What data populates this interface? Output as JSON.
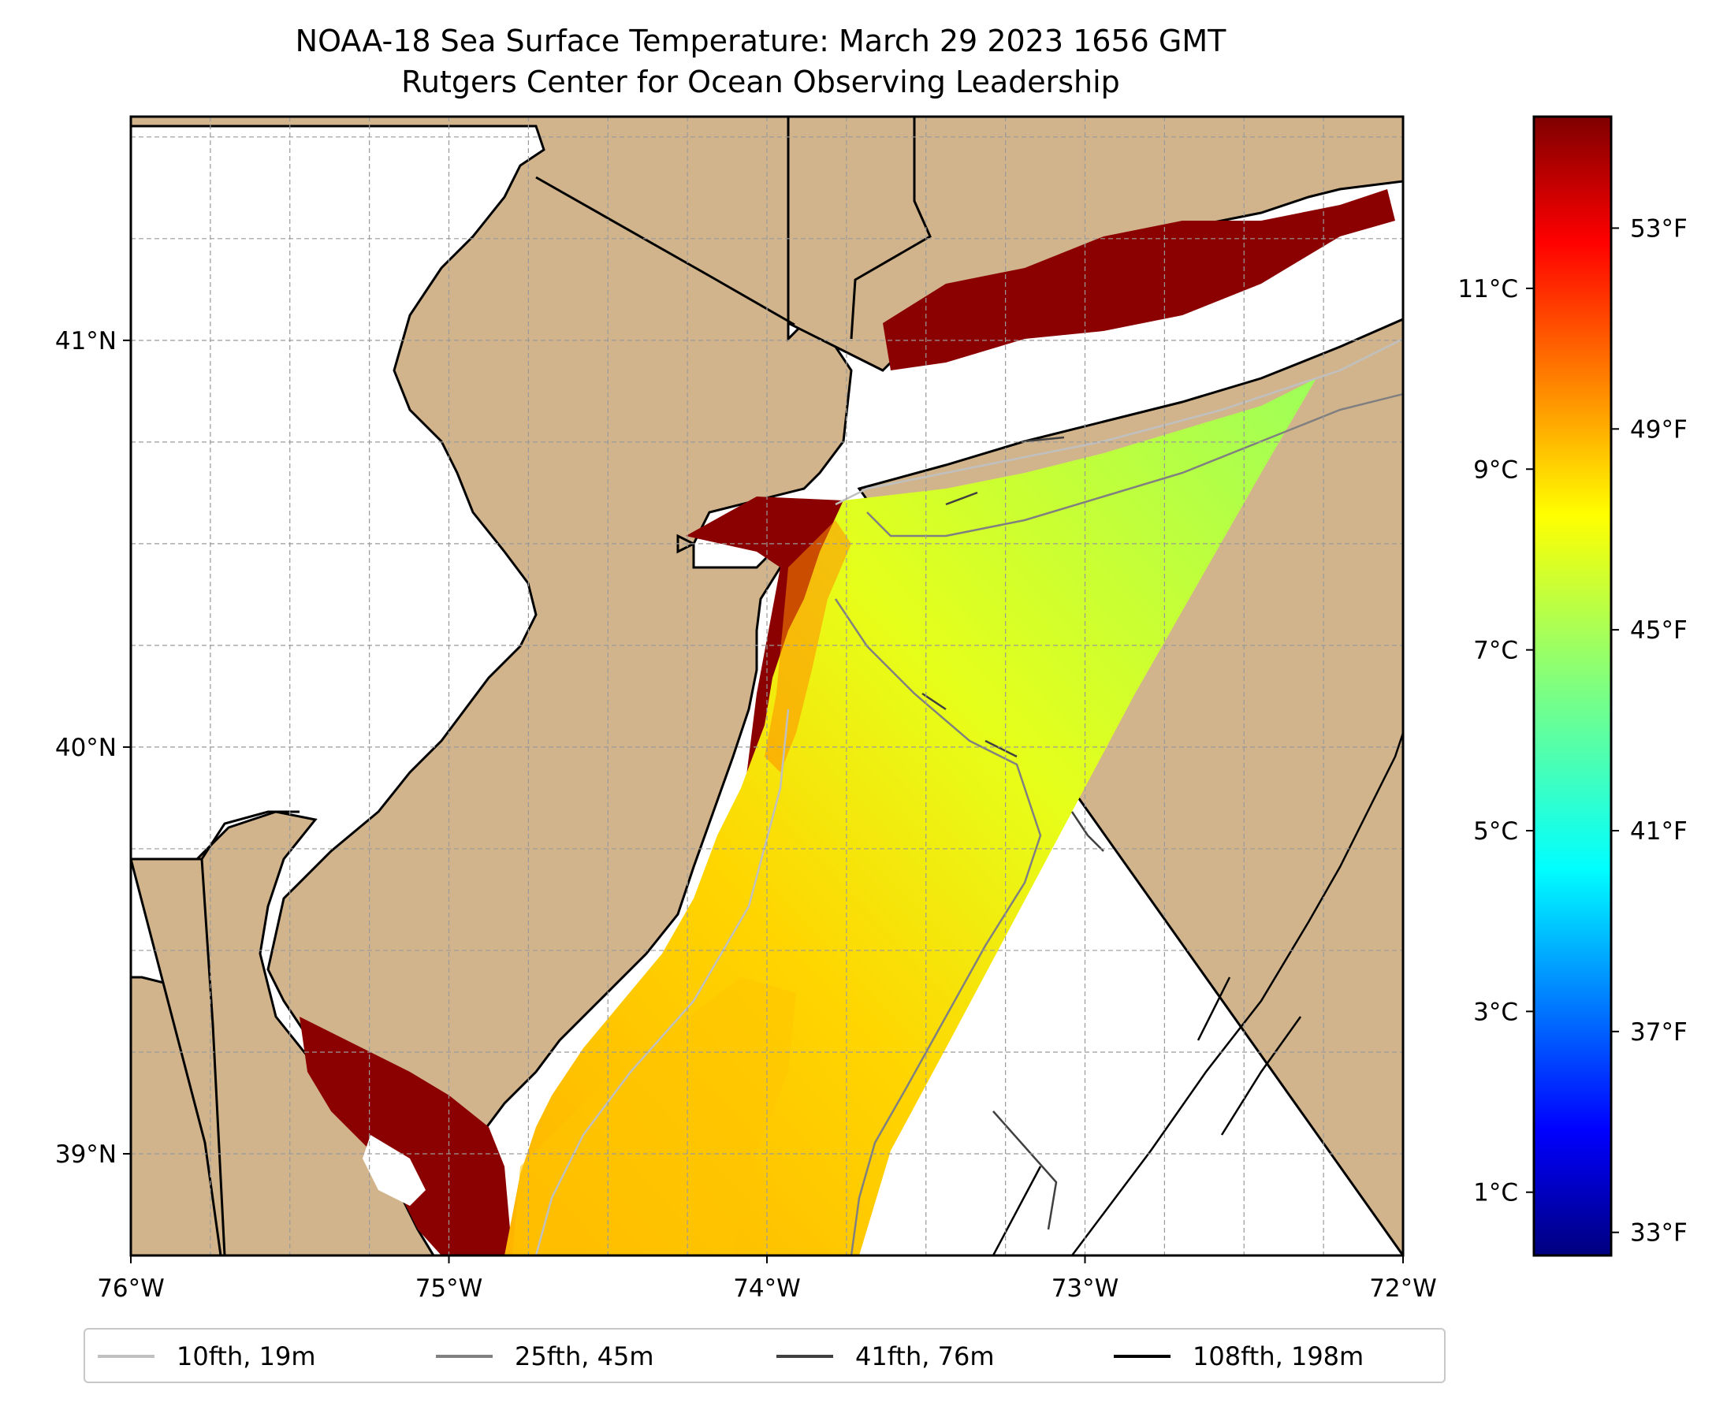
{
  "title": {
    "line1": "NOAA-18 Sea Surface Temperature: March 29 2023 1656 GMT",
    "line2": "Rutgers Center for Ocean Observing Leadership"
  },
  "map": {
    "lon_range": [
      -76.0,
      -72.0
    ],
    "lat_range": [
      38.75,
      41.55
    ],
    "x_ticks": [
      {
        "lon": -76,
        "label": "76°W"
      },
      {
        "lon": -75,
        "label": "75°W"
      },
      {
        "lon": -74,
        "label": "74°W"
      },
      {
        "lon": -73,
        "label": "73°W"
      },
      {
        "lon": -72,
        "label": "72°W"
      }
    ],
    "y_ticks": [
      {
        "lat": 39,
        "label": "39°N"
      },
      {
        "lat": 40,
        "label": "40°N"
      },
      {
        "lat": 41,
        "label": "41°N"
      }
    ],
    "gridlines": "dashed",
    "land_color": "#d2b48c",
    "water_color": "#ffffff"
  },
  "colorbar": {
    "colormap": "jet",
    "range_c": [
      0.3,
      12.9
    ],
    "celsius_ticks": [
      {
        "value": 1,
        "label": "1°C"
      },
      {
        "value": 3,
        "label": "3°C"
      },
      {
        "value": 5,
        "label": "5°C"
      },
      {
        "value": 7,
        "label": "7°C"
      },
      {
        "value": 9,
        "label": "9°C"
      },
      {
        "value": 11,
        "label": "11°C"
      }
    ],
    "fahrenheit_ticks": [
      {
        "value": 33,
        "label": "33°F"
      },
      {
        "value": 37,
        "label": "37°F"
      },
      {
        "value": 41,
        "label": "41°F"
      },
      {
        "value": 45,
        "label": "45°F"
      },
      {
        "value": 49,
        "label": "49°F"
      },
      {
        "value": 53,
        "label": "53°F"
      }
    ]
  },
  "legend": {
    "items": [
      {
        "label": "10fth, 19m",
        "color": "#c0c0c0"
      },
      {
        "label": "25fth, 45m",
        "color": "#808080"
      },
      {
        "label": "41fth, 76m",
        "color": "#404040"
      },
      {
        "label": "108fth, 198m",
        "color": "#000000"
      }
    ]
  }
}
